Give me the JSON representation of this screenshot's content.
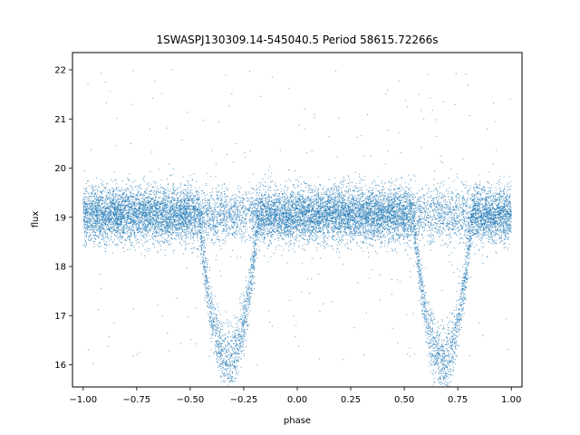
{
  "chart_data": {
    "type": "scatter",
    "title": "1SWASPJ130309.14-545040.5 Period 58615.72266s",
    "xlabel": "phase",
    "ylabel": "flux",
    "xlim": [
      -1.05,
      1.05
    ],
    "ylim": [
      15.55,
      22.35
    ],
    "xticks": [
      -1.0,
      -0.75,
      -0.5,
      -0.25,
      0.0,
      0.25,
      0.5,
      0.75,
      1.0
    ],
    "xtick_labels": [
      "−1.00",
      "−0.75",
      "−0.50",
      "−0.25",
      "0.00",
      "0.25",
      "0.50",
      "0.75",
      "1.00"
    ],
    "yticks": [
      16,
      17,
      18,
      19,
      20,
      21,
      22
    ],
    "ytick_labels": [
      "16",
      "17",
      "18",
      "19",
      "20",
      "21",
      "22"
    ],
    "grid": false,
    "legend": "none",
    "marker_color": "#1f77b4",
    "series": [
      {
        "baseline_flux": 19.05,
        "baseline_scatter": 0.28,
        "x_range": [
          -1.0,
          1.0
        ],
        "eclipses": [
          {
            "center_phase": -0.32,
            "half_width": 0.14,
            "min_flux": 16.1
          },
          {
            "center_phase": 0.68,
            "half_width": 0.14,
            "min_flux": 16.1
          }
        ],
        "outlier_flux_range": [
          15.9,
          22.0
        ]
      }
    ]
  }
}
